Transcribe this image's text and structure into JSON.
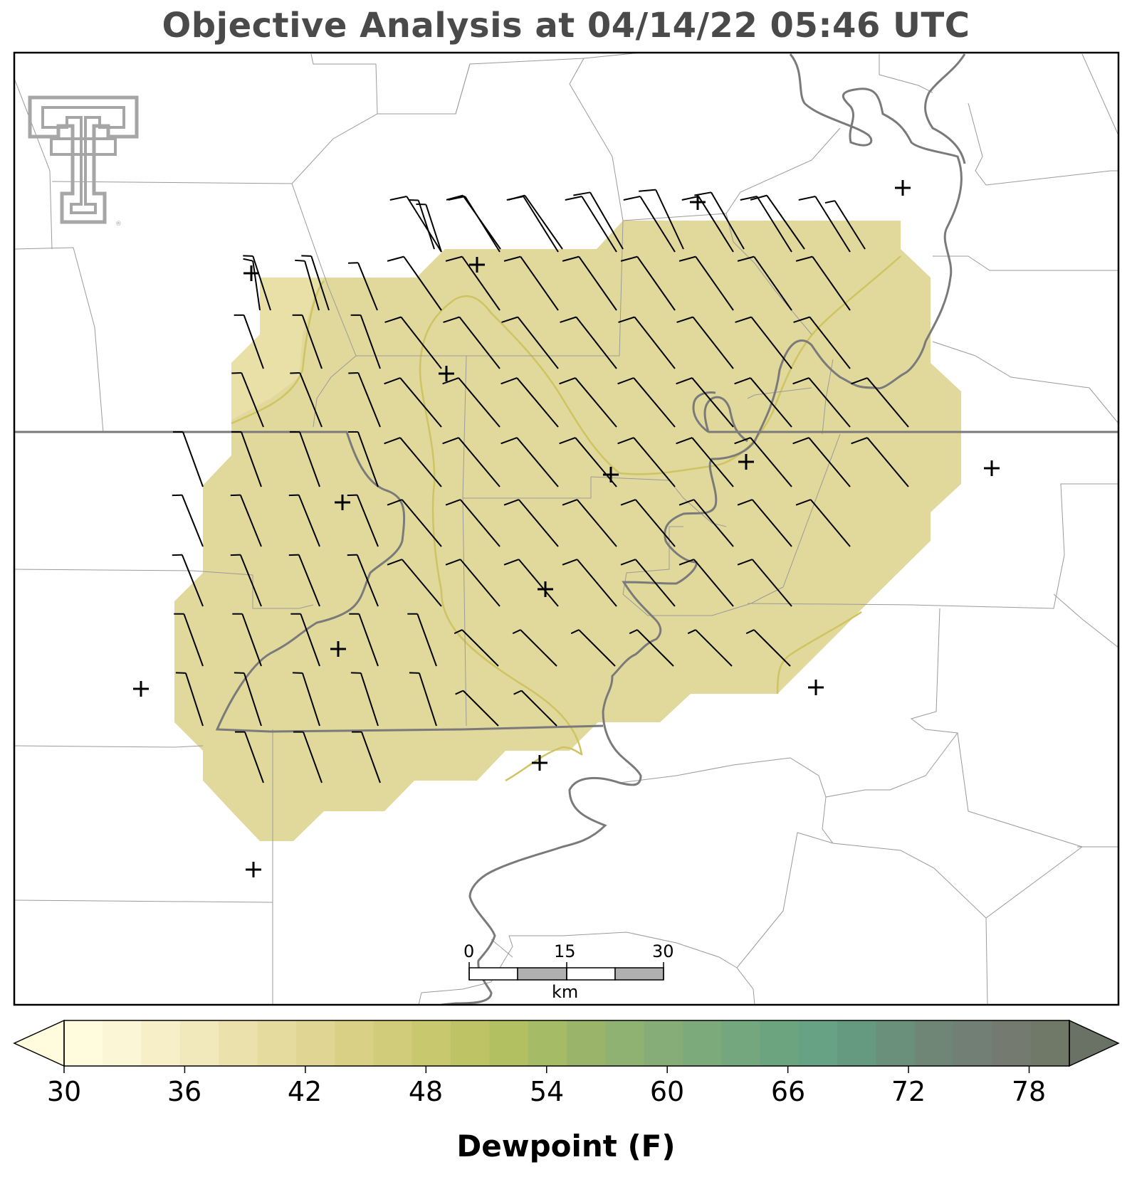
{
  "title": "Objective Analysis at 04/14/22 05:46 UTC",
  "logo": {
    "name": "texas-tech-double-t-logo",
    "color": "#a6a6a6"
  },
  "colorbar": {
    "label": "Dewpoint (F)",
    "min": 30,
    "max": 80,
    "step": 2,
    "ticks": [
      "30",
      "36",
      "42",
      "48",
      "54",
      "60",
      "66",
      "72",
      "78"
    ],
    "extend": "both",
    "colors": [
      "#fffbdc",
      "#fbf6d5",
      "#f6efc8",
      "#f1e8bb",
      "#ebe1ac",
      "#e6db9f",
      "#e0d593",
      "#d9d085",
      "#d0cc79",
      "#c8c86f",
      "#bec366",
      "#b2c062",
      "#a6bb66",
      "#9ab56a",
      "#8fb172",
      "#86ad77",
      "#7daa7a",
      "#74a77d",
      "#6ca480",
      "#66a283",
      "#659a80",
      "#6a8f7b",
      "#6f8677",
      "#727f74",
      "#747a70",
      "#707868"
    ],
    "under_color": "#fffbdc",
    "over_color": "#6a7165"
  },
  "scale_bar": {
    "labels": [
      "0",
      "15",
      "30"
    ],
    "units": "km"
  },
  "field": {
    "fill_color": "#e0d89a",
    "light_area_color": "#e8dea6",
    "contour_color": "#cfc462",
    "contour_level_f": 44
  },
  "stations": {
    "count": 15,
    "marker": "plus"
  },
  "wind_barbs": {
    "count": 180,
    "color": "#000000",
    "note": "north-northwest flow"
  }
}
